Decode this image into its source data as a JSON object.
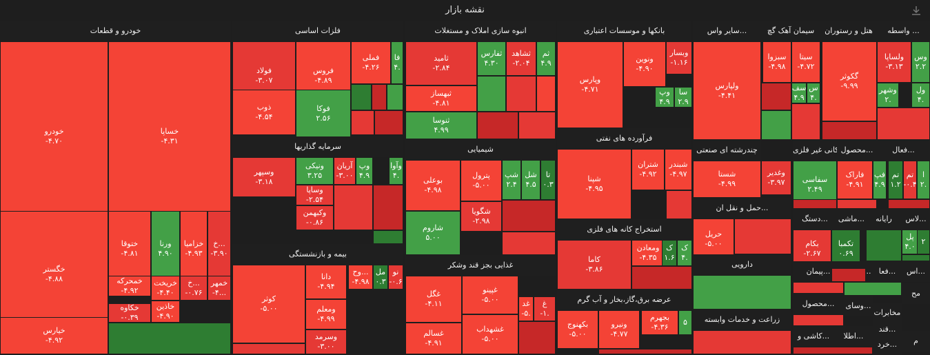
{
  "title": "نقشه بازار",
  "icons": {
    "download": "download-icon"
  },
  "colors": {
    "neg_strong": "#c62828",
    "neg": "#e53935",
    "neg_light": "#f44336",
    "pos": "#43a047",
    "pos_dark": "#2e7d32",
    "bg": "#1e1e1e"
  },
  "chart_data": {
    "type": "treemap",
    "sectors": [
      {
        "name": "خودرو و قطعات",
        "stocks": [
          {
            "n": "خودرو",
            "v": "-۴.۷۰"
          },
          {
            "n": "خساپا",
            "v": "-۴.۳۱"
          },
          {
            "n": "خگستر",
            "v": "-۴.۸۸"
          },
          {
            "n": "خیارس",
            "v": "-۴.۹۲"
          },
          {
            "n": "ختوقا",
            "v": "-۴.۸۱"
          },
          {
            "n": "ورنا",
            "v": "۴.۹۰"
          },
          {
            "n": "خزامیا",
            "v": "-۴.۹۳"
          },
          {
            "n": "خ...",
            "v": "-۳.۹۰"
          },
          {
            "n": "خمحرکه",
            "v": "-۴.۹۲"
          },
          {
            "n": "خریخت",
            "v": "-۴.۴۰"
          },
          {
            "n": "خ...",
            "v": "-۰.۷۶"
          },
          {
            "n": "خمهر",
            "v": "-۴..."
          },
          {
            "n": "خکاوه",
            "v": "-۰.۳۹"
          },
          {
            "n": "خاذین",
            "v": "-۴.۹۰"
          }
        ]
      },
      {
        "name": "فلزات اساسی",
        "stocks": [
          {
            "n": "فولاد",
            "v": "-۳.۰۷"
          },
          {
            "n": "فروس",
            "v": "-۴.۸۹"
          },
          {
            "n": "فملی",
            "v": "-۴.۲۶"
          },
          {
            "n": "فا",
            "v": "۴."
          },
          {
            "n": "ذوب",
            "v": "-۴.۵۴"
          },
          {
            "n": "فوکا",
            "v": "۲.۵۶"
          }
        ]
      },
      {
        "name": "انبوه سازی املاک و مستغلات",
        "stocks": [
          {
            "n": "ثامید",
            "v": "-۲.۸۴"
          },
          {
            "n": "ثفارس",
            "v": "۴.۳۰"
          },
          {
            "n": "ثشاهد",
            "v": "-۲.۰۴"
          },
          {
            "n": "ثم",
            "v": "۴.۹"
          },
          {
            "n": "ثبهساز",
            "v": "-۴.۸۱"
          },
          {
            "n": "ثنوسا",
            "v": "۴.۹۹"
          }
        ]
      },
      {
        "name": "بانکها و موسسات اعتباری",
        "stocks": [
          {
            "n": "وپارس",
            "v": "-۴.۷۱"
          },
          {
            "n": "ونوین",
            "v": "-۴.۹۰"
          },
          {
            "n": "وبسار",
            "v": "-۱.۱۶"
          },
          {
            "n": "وپ",
            "v": "۴.۹"
          },
          {
            "n": "سا",
            "v": "۲.۹"
          }
        ]
      },
      {
        "name": "سایر واس...",
        "stocks": [
          {
            "n": "ولپارس",
            "v": "-۴.۴۱"
          }
        ]
      },
      {
        "name": "سیمان آهک گچ",
        "stocks": [
          {
            "n": "سیتا",
            "v": "-۴.۷۲"
          },
          {
            "n": "سبزوا",
            "v": "-۴.۹۸"
          },
          {
            "n": "سف",
            "v": "۴.۹"
          },
          {
            "n": "س",
            "v": "۴."
          }
        ]
      },
      {
        "name": "هتل و رستوران",
        "stocks": [
          {
            "n": "گکوثر",
            "v": "-۹.۹۹"
          }
        ]
      },
      {
        "name": "واسطه ...",
        "stocks": [
          {
            "n": "ولساپا",
            "v": "-۳.۱۳"
          },
          {
            "n": "وس",
            "v": "۲.۲"
          },
          {
            "n": "وشهر",
            "v": "۲."
          },
          {
            "n": "ول",
            "v": "۴."
          }
        ]
      },
      {
        "name": "سرمایه گذاریها",
        "stocks": [
          {
            "n": "وسپهر",
            "v": "-۳.۱۸"
          },
          {
            "n": "ونیکی",
            "v": "۳.۲۵"
          },
          {
            "n": "آریان",
            "v": "-۳.۰۰"
          },
          {
            "n": "وپ",
            "v": "۴.۹"
          },
          {
            "n": "وآوا",
            "v": "۴."
          },
          {
            "n": "وساپا",
            "v": "-۲.۵۴"
          },
          {
            "n": "وکبهمن",
            "v": "-۰.۸۶"
          }
        ]
      },
      {
        "name": "شیمیایی",
        "stocks": [
          {
            "n": "بوعلی",
            "v": "-۴.۹۸"
          },
          {
            "n": "پترول",
            "v": "-۵.۰۰"
          },
          {
            "n": "شپ",
            "v": "۲.۴"
          },
          {
            "n": "شل",
            "v": "۴.۵"
          },
          {
            "n": "تا",
            "v": "۰.۳"
          },
          {
            "n": "شگویا",
            "v": "-۲.۹۸"
          },
          {
            "n": "شاروم",
            "v": "۵.۰۰"
          }
        ]
      },
      {
        "name": "فرآورده های نفتی",
        "stocks": [
          {
            "n": "شپنا",
            "v": "-۴.۹۵"
          },
          {
            "n": "شتران",
            "v": "-۴.۹۲"
          },
          {
            "n": "شبندر",
            "v": "-۴.۹۷"
          }
        ]
      },
      {
        "name": "استخراج کانه های فلزی",
        "stocks": [
          {
            "n": "کاما",
            "v": "-۳.۸۶"
          },
          {
            "n": "ومعادن",
            "v": "-۴.۳۵"
          },
          {
            "n": "ک",
            "v": "۱.۶"
          },
          {
            "n": "ک",
            "v": "۴."
          }
        ]
      },
      {
        "name": "عرضه برق،گاز،بخار و آب گرم",
        "stocks": [
          {
            "n": "بکهنوج",
            "v": "-۵.۰۰"
          },
          {
            "n": "ونیرو",
            "v": "-۴.۷۷"
          },
          {
            "n": "بجهرم",
            "v": "-۴.۳۶"
          },
          {
            "n": "",
            "v": "۵"
          }
        ]
      },
      {
        "name": "بیمه و بازنشستگی",
        "stocks": [
          {
            "n": "کوثر",
            "v": "-۵.۰۰"
          },
          {
            "n": "دانا",
            "v": "-۴.۹۴"
          },
          {
            "n": "وح...",
            "v": "-۴.۹۸"
          },
          {
            "n": "مل",
            "v": "۰.۳"
          },
          {
            "n": "نو",
            "v": "-۰.۶"
          },
          {
            "n": "ومعلم",
            "v": "-۴.۹۹"
          },
          {
            "n": "وسرمد",
            "v": "-۳.۰۰"
          }
        ]
      },
      {
        "name": "غذایی بجز قند وشکر",
        "stocks": [
          {
            "n": "غگل",
            "v": "-۴.۱۱"
          },
          {
            "n": "غپینو",
            "v": "-۵.۰۰"
          },
          {
            "n": "غد",
            "v": "-۵."
          },
          {
            "n": "غ",
            "v": "-۱."
          },
          {
            "n": "غسالم",
            "v": "-۴.۹۱"
          },
          {
            "n": "غشهداب",
            "v": "-۵.۰۰"
          }
        ]
      },
      {
        "name": "چندرشته ای صنعتی",
        "stocks": [
          {
            "n": "شستا",
            "v": "-۴.۹۹"
          },
          {
            "n": "وغدیر",
            "v": "-۳.۹۷"
          }
        ]
      },
      {
        "name": "کانی غیر فلزی",
        "stocks": [
          {
            "n": "سفاسی",
            "v": "۲.۴۹"
          }
        ]
      },
      {
        "name": "محصول...",
        "stocks": [
          {
            "n": "فاراک",
            "v": "-۴.۹۱"
          },
          {
            "n": "فپ",
            "v": "۴.۹"
          }
        ]
      },
      {
        "name": "فعال...",
        "stocks": [
          {
            "n": "تم",
            "v": "۱.۲"
          },
          {
            "n": "تم",
            "v": "-۰.۴"
          },
          {
            "n": "ا",
            "v": "۲."
          }
        ]
      },
      {
        "name": "حمل و نقل ان...",
        "stocks": [
          {
            "n": "حریل",
            "v": "-۵.۰۰"
          }
        ]
      },
      {
        "name": "دستگ...",
        "stocks": [
          {
            "n": "بکام",
            "v": "-۲.۶۷"
          }
        ]
      },
      {
        "name": "ماشی...",
        "stocks": [
          {
            "n": "تکمبا",
            "v": "۰.۶۹"
          }
        ]
      },
      {
        "name": "رایانه",
        "stocks": []
      },
      {
        "name": "لاس...",
        "stocks": [
          {
            "n": "پل",
            "v": "۴.۰"
          },
          {
            "n": "۲",
            "v": ""
          }
        ]
      },
      {
        "name": "دارویی",
        "stocks": []
      },
      {
        "name": "زراعت و خدمات وابسته",
        "stocks": []
      },
      {
        "name": "پیمان...",
        "stocks": []
      },
      {
        "name": "فنی و...",
        "stocks": []
      },
      {
        "name": "فعا...",
        "stocks": []
      },
      {
        "name": "اس...",
        "stocks": []
      },
      {
        "name": "مح",
        "stocks": []
      },
      {
        "name": "م",
        "stocks": []
      },
      {
        "name": "وسای...",
        "stocks": []
      },
      {
        "name": "محصول...",
        "stocks": []
      },
      {
        "name": "مخابرات",
        "stocks": []
      },
      {
        "name": "قند...",
        "stocks": []
      },
      {
        "name": "خرد...",
        "stocks": []
      },
      {
        "name": "اطلا...",
        "stocks": []
      },
      {
        "name": "کاشی و...",
        "stocks": []
      }
    ]
  }
}
